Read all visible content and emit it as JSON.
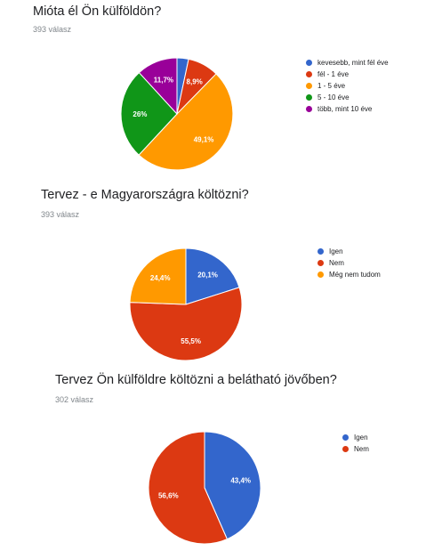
{
  "chart_data": [
    {
      "type": "pie",
      "title": "Mióta él Ön külföldön?",
      "responses": "393 válasz",
      "slices": [
        {
          "label": "kevesebb, mint fél éve",
          "value": 3.3,
          "display": "",
          "color": "#3366cc"
        },
        {
          "label": "fél - 1 éve",
          "value": 8.9,
          "display": "8,9%",
          "color": "#dc3912"
        },
        {
          "label": "1 - 5 éve",
          "value": 49.1,
          "display": "49,1%",
          "color": "#ff9900"
        },
        {
          "label": "5 - 10 éve",
          "value": 26.0,
          "display": "26%",
          "color": "#109618"
        },
        {
          "label": "több, mint 10 éve",
          "value": 11.7,
          "display": "11,7%",
          "color": "#990099"
        }
      ],
      "legend_position": "right"
    },
    {
      "type": "pie",
      "title": "Tervez - e Magyarországra költözni?",
      "responses": "393 válasz",
      "slices": [
        {
          "label": "Igen",
          "value": 20.1,
          "display": "20,1%",
          "color": "#3366cc"
        },
        {
          "label": "Nem",
          "value": 55.5,
          "display": "55,5%",
          "color": "#dc3912"
        },
        {
          "label": "Még nem tudom",
          "value": 24.4,
          "display": "24,4%",
          "color": "#ff9900"
        }
      ],
      "legend_position": "right"
    },
    {
      "type": "pie",
      "title": "Tervez Ön külföldre költözni a belátható jövőben?",
      "responses": "302 válasz",
      "slices": [
        {
          "label": "Igen",
          "value": 43.4,
          "display": "43,4%",
          "color": "#3366cc"
        },
        {
          "label": "Nem",
          "value": 56.6,
          "display": "56,6%",
          "color": "#dc3912"
        }
      ],
      "legend_position": "right"
    }
  ]
}
